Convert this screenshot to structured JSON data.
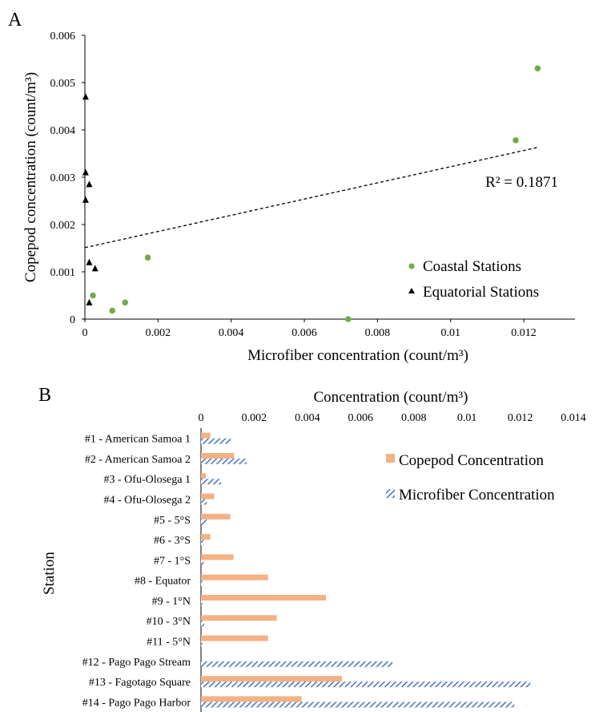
{
  "panel_a_label": "A",
  "panel_b_label": "B",
  "chart_data": [
    {
      "type": "scatter",
      "xlabel": "Microfiber concentration (count/m³)",
      "ylabel": "Copepod concentration (count/m³)",
      "xlim": [
        0,
        0.0134
      ],
      "ylim": [
        0,
        0.006
      ],
      "x_ticks": [
        "0",
        "0.002",
        "0.004",
        "0.006",
        "0.008",
        "0.01",
        "0.012"
      ],
      "y_ticks": [
        "0",
        "0.001",
        "0.002",
        "0.003",
        "0.004",
        "0.005",
        "0.006"
      ],
      "legend_position": "bottom-right",
      "grid": false,
      "series": [
        {
          "name": "Coastal Stations",
          "marker": "circle",
          "color": "#70ad47",
          "points": [
            {
              "x": 0.00022,
              "y": 0.0005
            },
            {
              "x": 0.00075,
              "y": 0.00018
            },
            {
              "x": 0.0011,
              "y": 0.00035
            },
            {
              "x": 0.00172,
              "y": 0.0013
            },
            {
              "x": 0.0072,
              "y": 0.0
            },
            {
              "x": 0.01178,
              "y": 0.00378
            },
            {
              "x": 0.01238,
              "y": 0.0053
            }
          ]
        },
        {
          "name": "Equatorial Stations",
          "marker": "triangle",
          "color": "#000000",
          "points": [
            {
              "x": 2e-05,
              "y": 0.0047
            },
            {
              "x": 2e-05,
              "y": 0.0031
            },
            {
              "x": 0.00012,
              "y": 0.00285
            },
            {
              "x": 2e-05,
              "y": 0.00252
            },
            {
              "x": 0.00012,
              "y": 0.0012
            },
            {
              "x": 0.00028,
              "y": 0.00107
            },
            {
              "x": 0.00012,
              "y": 0.00035
            }
          ]
        }
      ],
      "trendline": {
        "style": "dashed",
        "x": [
          0,
          0.01238
        ],
        "y": [
          0.00151,
          0.00363
        ],
        "label": "R² = 0.1871"
      }
    },
    {
      "type": "bar",
      "orientation": "horizontal",
      "xlabel": "Concentration (count/m³)",
      "ylabel": "Station",
      "xlim": [
        0,
        0.014
      ],
      "x_ticks": [
        "0",
        "0.002",
        "0.004",
        "0.006",
        "0.008",
        "0.01",
        "0.012",
        "0.014"
      ],
      "x_axis_position": "top",
      "legend_position": "top-right",
      "categories": [
        "#1 - American Samoa 1",
        "#2 - American Samoa 2",
        "#3 - Ofu-Olosega 1",
        "#4 - Ofu-Olosega 2",
        "#5 - 5°S",
        "#6 - 3°S",
        "#7 - 1°S",
        "#8 - Equator",
        "#9 - 1°N",
        "#10 - 3°N",
        "#11 - 5°N",
        "#12 - Pago Pago Stream",
        "#13 - Fagotago Square",
        "#14 - Pago Pago Harbor"
      ],
      "series": [
        {
          "name": "Copepod Concentration",
          "color": "#f4b183",
          "pattern": "solid",
          "values": [
            0.00035,
            0.00125,
            0.00018,
            0.0005,
            0.0011,
            0.00035,
            0.00122,
            0.00252,
            0.0047,
            0.00285,
            0.00252,
            0.0,
            0.0053,
            0.00378
          ]
        },
        {
          "name": "Microfiber Concentration",
          "color": "#4472c4",
          "pattern": "diagonal-hatch",
          "values": [
            0.00112,
            0.00172,
            0.00075,
            0.00022,
            0.00022,
            0.0001,
            0.0001,
            5e-05,
            5e-05,
            0.00012,
            5e-05,
            0.0072,
            0.01238,
            0.01178
          ]
        }
      ]
    }
  ]
}
